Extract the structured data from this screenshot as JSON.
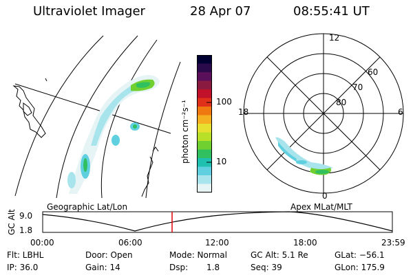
{
  "header": {
    "title": "Ultraviolet Imager",
    "date": "28 Apr 07",
    "time": "08:55:41 UT"
  },
  "colorbar": {
    "unit_label": "photon cm⁻²s⁻¹",
    "ticks": [
      "100",
      "10"
    ],
    "colors": [
      "#000033",
      "#2a0a4a",
      "#5a0f5a",
      "#8a1a40",
      "#c0102a",
      "#e0301a",
      "#f07810",
      "#f4b020",
      "#e8e030",
      "#b8e028",
      "#70d030",
      "#30c060",
      "#20c0b0",
      "#60d0e0",
      "#a8e4ec",
      "#e6f4f6"
    ]
  },
  "geo_map": {
    "label": "Geographic Lat/Lon"
  },
  "polar_plot": {
    "label": "Apex MLat/MLT",
    "mlt_labels": [
      "12",
      "18",
      "6",
      "0"
    ],
    "lat_labels": [
      "60",
      "70",
      "80"
    ]
  },
  "timeline": {
    "y_axis_label": "GC Alt",
    "y_ticks": [
      "9.0",
      "1.8"
    ],
    "x_ticks": [
      "00:00",
      "06:00",
      "12:00",
      "18:00",
      "23:59"
    ],
    "marker_color": "#e00000"
  },
  "status": {
    "flt": "Flt: LBHL",
    "door": "Door: Open",
    "mode": "Mode: Normal",
    "gc_alt": "GC Alt: 5.1 Re",
    "glat": "GLat: −56.1",
    "ip": "IP: 36.0",
    "gain": "Gain: 14",
    "dsp_label": "Dsp:",
    "dsp_value": "1.8",
    "seq": "Seq: 39",
    "glon": "GLon: 175.9"
  }
}
